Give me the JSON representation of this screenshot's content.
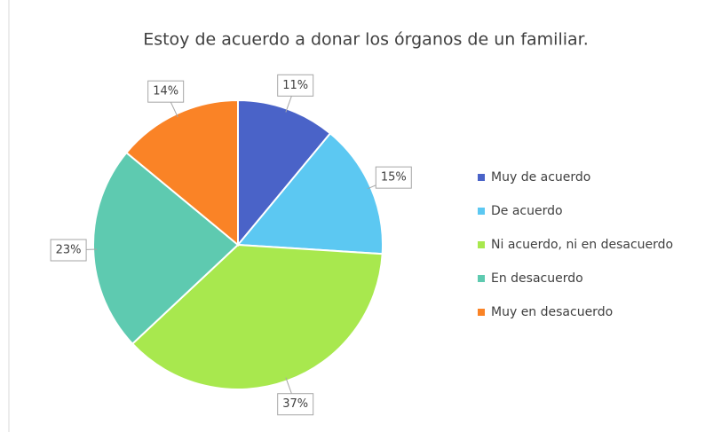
{
  "chart_data": {
    "type": "pie",
    "title": "Estoy de acuerdo a donar los órganos de un familiar.",
    "categories": [
      "Muy de acuerdo",
      "De acuerdo",
      "Ni acuerdo, ni en desacuerdo",
      "En desacuerdo",
      "Muy en desacuerdo"
    ],
    "values": [
      11,
      15,
      37,
      23,
      14
    ],
    "value_labels": [
      "11%",
      "15%",
      "37%",
      "23%",
      "14%"
    ],
    "colors": [
      "#4a63c8",
      "#5cc8f2",
      "#a8e84e",
      "#5ecab0",
      "#fa8326"
    ],
    "legend": "right"
  }
}
